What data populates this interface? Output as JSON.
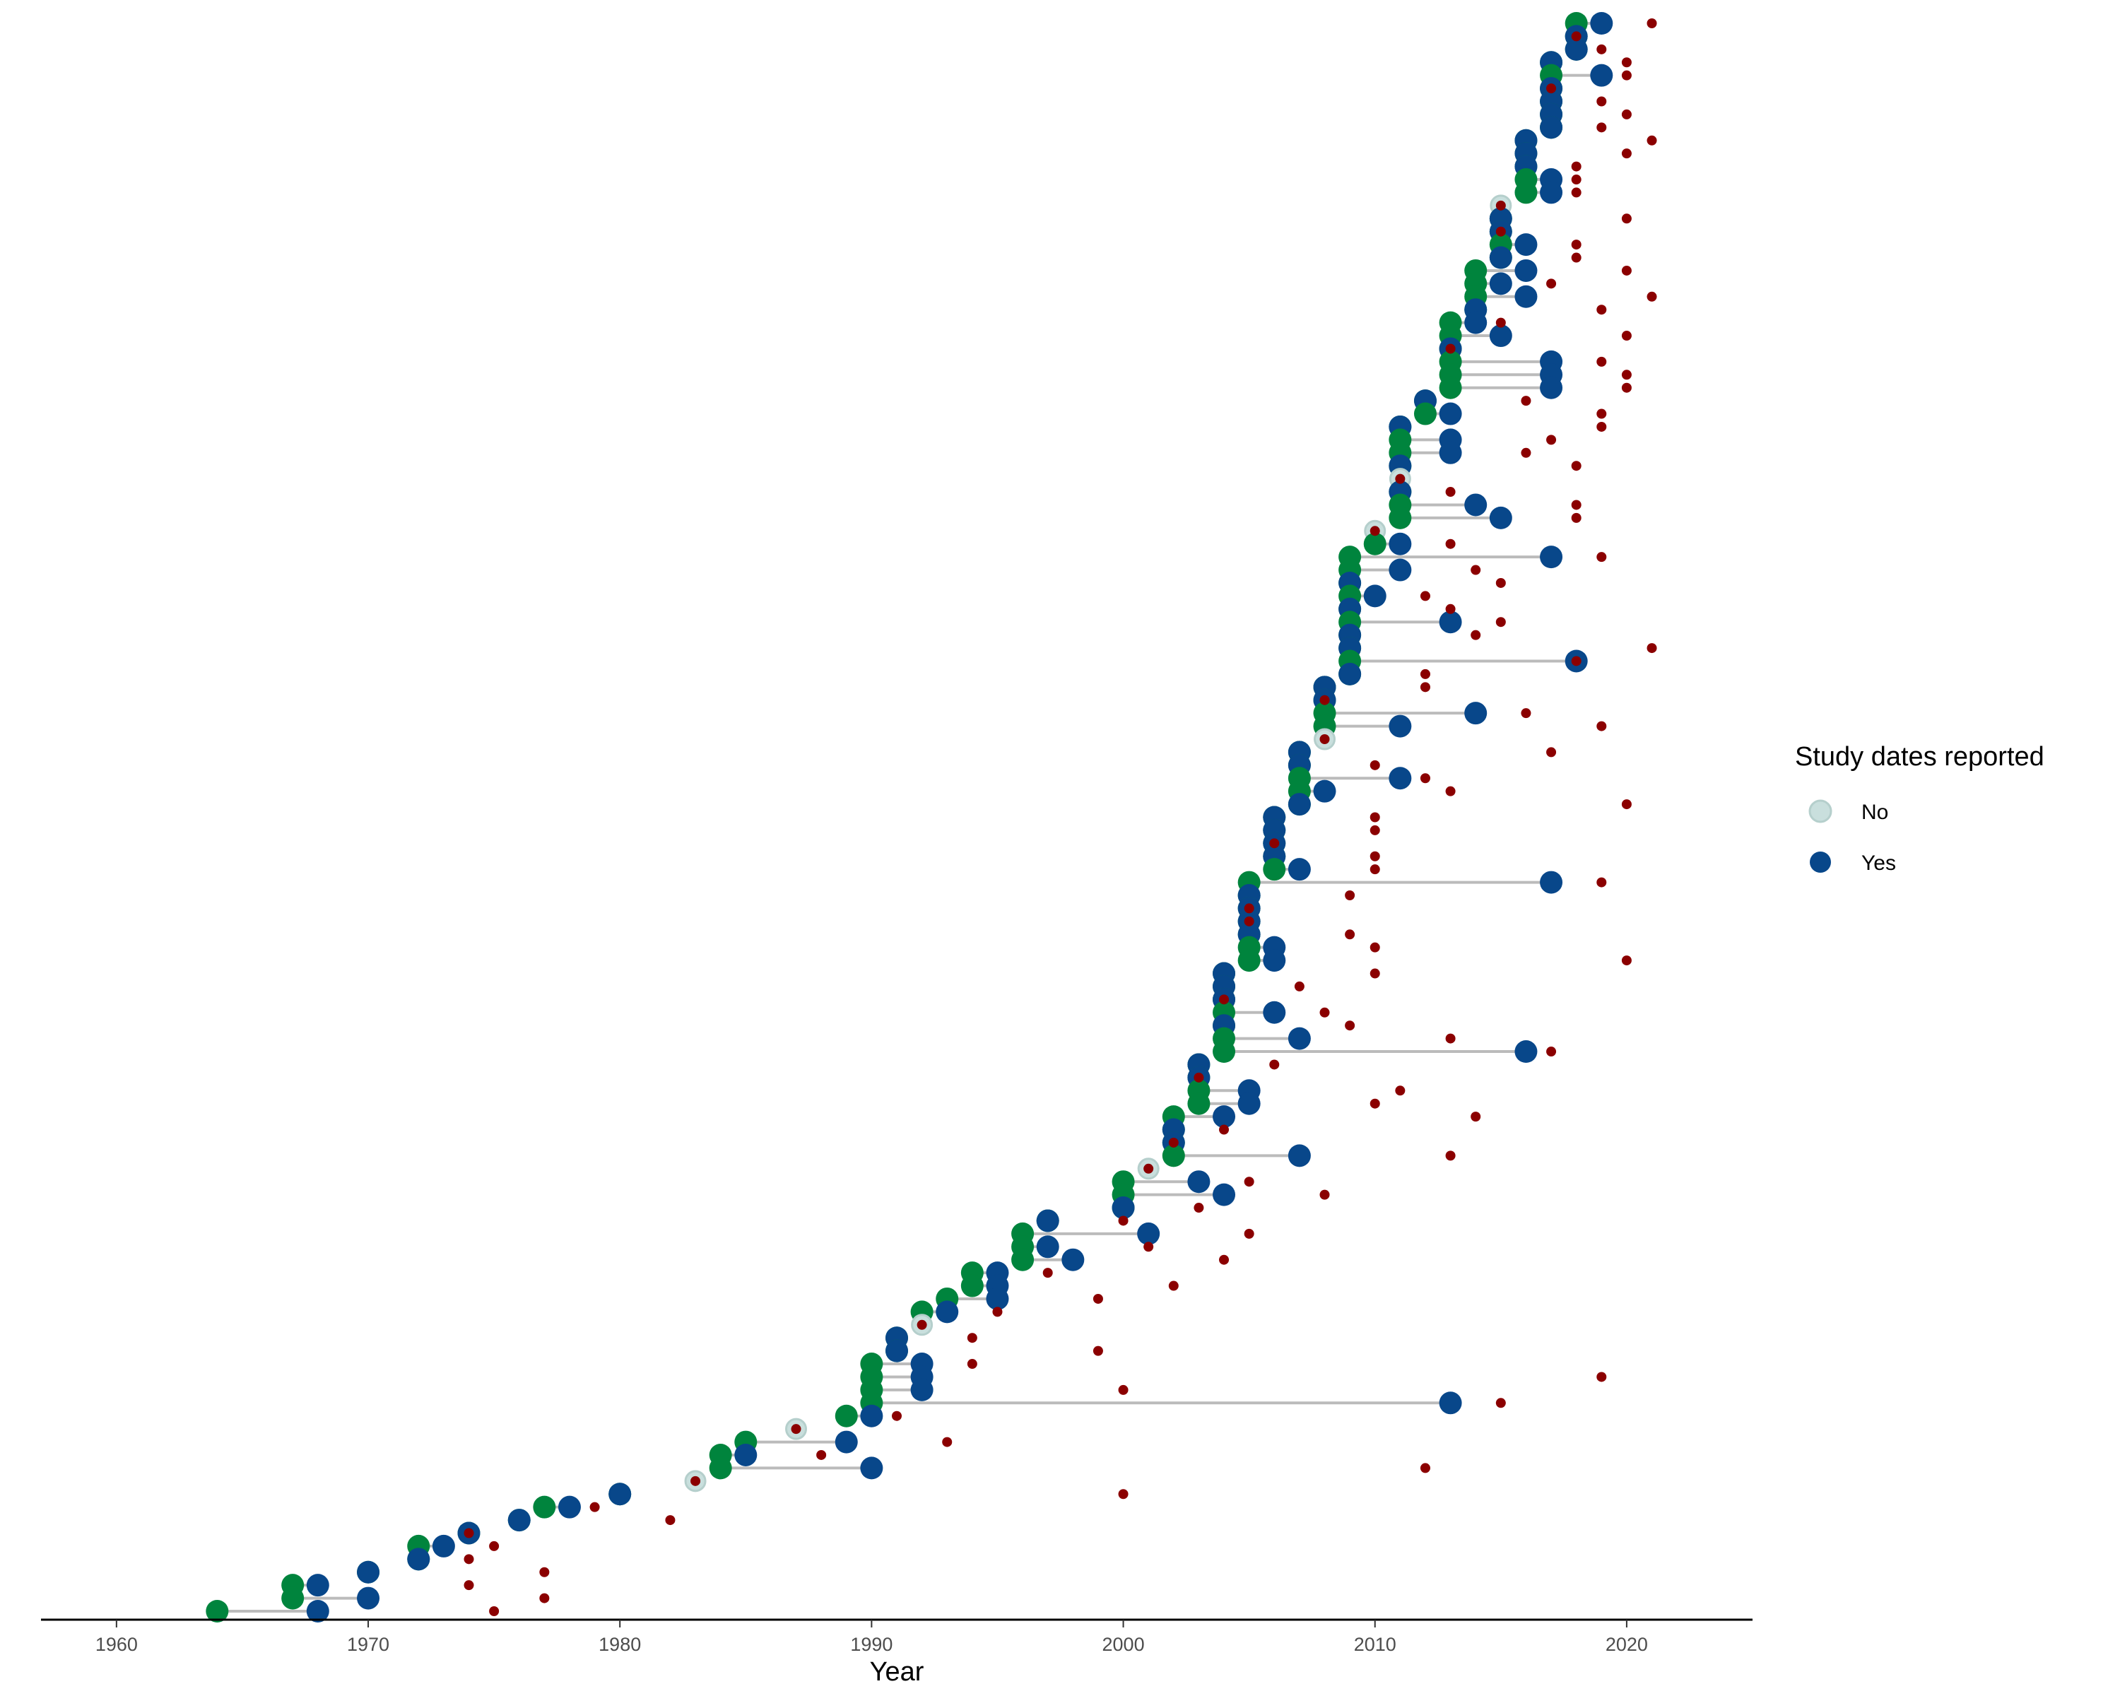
{
  "chart_data": {
    "type": "scatter",
    "title": "",
    "xlabel": "Year",
    "ylabel": "",
    "xlim": [
      1957,
      2025
    ],
    "xticks": [
      1960,
      1970,
      1980,
      1990,
      2000,
      2010,
      2020
    ],
    "grid": false,
    "legend": {
      "title": "Study dates reported",
      "position": "right",
      "entries": [
        {
          "label": "No",
          "color": "#c9dfdd"
        },
        {
          "label": "Yes",
          "color": "#08478a"
        }
      ]
    },
    "colors": {
      "study_start": "#00843d",
      "study_end_yes": "#08478a",
      "no_dates": "#c9dfdd",
      "publication": "#8b0000",
      "connector": "#bbbbbb"
    },
    "rows": [
      {
        "start": 2018,
        "end": 2019,
        "pub": 2021
      },
      {
        "start": 2018,
        "end": 2018,
        "pub": 2018
      },
      {
        "start": 2018,
        "end": 2018,
        "pub": 2019
      },
      {
        "start": 2017,
        "end": 2017,
        "pub": 2020
      },
      {
        "start": 2017,
        "end": 2019,
        "pub": 2020
      },
      {
        "start": 2017,
        "end": 2017,
        "pub": 2017
      },
      {
        "start": 2017,
        "end": 2017,
        "pub": 2019
      },
      {
        "start": 2017,
        "end": 2017,
        "pub": 2020
      },
      {
        "start": 2017,
        "end": 2017,
        "pub": 2019
      },
      {
        "start": 2016,
        "end": 2016,
        "pub": 2021
      },
      {
        "start": 2016,
        "end": 2016,
        "pub": 2020
      },
      {
        "start": 2016,
        "end": 2016,
        "pub": 2018
      },
      {
        "start": 2016,
        "end": 2017,
        "pub": 2018
      },
      {
        "start": 2016,
        "end": 2017,
        "pub": 2018
      },
      {
        "start": null,
        "end": null,
        "nodate": 2015,
        "pub": 2015
      },
      {
        "start": 2015,
        "end": 2015,
        "pub": 2020
      },
      {
        "start": 2015,
        "end": 2015,
        "pub": 2015
      },
      {
        "start": 2015,
        "end": 2016,
        "pub": 2018
      },
      {
        "start": 2015,
        "end": 2015,
        "pub": 2018
      },
      {
        "start": 2014,
        "end": 2016,
        "pub": 2020
      },
      {
        "start": 2014,
        "end": 2015,
        "pub": 2017
      },
      {
        "start": 2014,
        "end": 2016,
        "pub": 2021
      },
      {
        "start": 2014,
        "end": 2014,
        "pub": 2019
      },
      {
        "start": 2013,
        "end": 2014,
        "pub": 2015
      },
      {
        "start": 2013,
        "end": 2015,
        "pub": 2020
      },
      {
        "start": 2013,
        "end": 2013,
        "pub": 2013
      },
      {
        "start": 2013,
        "end": 2017,
        "pub": 2019
      },
      {
        "start": 2013,
        "end": 2017,
        "pub": 2020
      },
      {
        "start": 2013,
        "end": 2017,
        "pub": 2020
      },
      {
        "start": 2012,
        "end": 2012,
        "pub": 2016
      },
      {
        "start": 2012,
        "end": 2013,
        "pub": 2019
      },
      {
        "start": 2011,
        "end": 2011,
        "pub": 2019
      },
      {
        "start": 2011,
        "end": 2013,
        "pub": 2017
      },
      {
        "start": 2011,
        "end": 2013,
        "pub": 2016
      },
      {
        "start": 2011,
        "end": 2011,
        "pub": 2018
      },
      {
        "start": null,
        "end": null,
        "nodate": 2011,
        "pub": 2011
      },
      {
        "start": 2011,
        "end": 2011,
        "pub": 2013
      },
      {
        "start": 2011,
        "end": 2014,
        "pub": 2018
      },
      {
        "start": 2011,
        "end": 2015,
        "pub": 2018
      },
      {
        "start": null,
        "end": null,
        "nodate": 2010,
        "pub": 2010
      },
      {
        "start": 2010,
        "end": 2011,
        "pub": 2013
      },
      {
        "start": 2009,
        "end": 2017,
        "pub": 2019
      },
      {
        "start": 2009,
        "end": 2011,
        "pub": 2014
      },
      {
        "start": 2009,
        "end": 2009,
        "pub": 2015
      },
      {
        "start": 2009,
        "end": 2010,
        "pub": 2012
      },
      {
        "start": 2009,
        "end": 2009,
        "pub": 2013
      },
      {
        "start": 2009,
        "end": 2013,
        "pub": 2015
      },
      {
        "start": 2009,
        "end": 2009,
        "pub": 2014
      },
      {
        "start": 2009,
        "end": 2009,
        "pub": 2021
      },
      {
        "start": 2009,
        "end": 2018,
        "pub": 2018
      },
      {
        "start": 2009,
        "end": 2009,
        "pub": 2012
      },
      {
        "start": 2008,
        "end": 2008,
        "pub": 2012
      },
      {
        "start": 2008,
        "end": 2008,
        "pub": 2008
      },
      {
        "start": 2008,
        "end": 2014,
        "pub": 2016
      },
      {
        "start": 2008,
        "end": 2011,
        "pub": 2019
      },
      {
        "start": null,
        "end": null,
        "nodate": 2008,
        "pub": 2008
      },
      {
        "start": 2007,
        "end": 2007,
        "pub": 2017
      },
      {
        "start": 2007,
        "end": 2007,
        "pub": 2010
      },
      {
        "start": 2007,
        "end": 2011,
        "pub": 2012
      },
      {
        "start": 2007,
        "end": 2008,
        "pub": 2013
      },
      {
        "start": 2007,
        "end": 2007,
        "pub": 2020
      },
      {
        "start": 2006,
        "end": 2006,
        "pub": 2010
      },
      {
        "start": 2006,
        "end": 2006,
        "pub": 2010
      },
      {
        "start": 2006,
        "end": 2006,
        "pub": 2006
      },
      {
        "start": 2006,
        "end": 2006,
        "pub": 2010
      },
      {
        "start": 2006,
        "end": 2007,
        "pub": 2010
      },
      {
        "start": 2005,
        "end": 2017,
        "pub": 2019
      },
      {
        "start": 2005,
        "end": 2005,
        "pub": 2009
      },
      {
        "start": 2005,
        "end": 2005,
        "pub": 2005
      },
      {
        "start": 2005,
        "end": 2005,
        "pub": 2005
      },
      {
        "start": 2005,
        "end": 2005,
        "pub": 2009
      },
      {
        "start": 2005,
        "end": 2006,
        "pub": 2010
      },
      {
        "start": 2005,
        "end": 2006,
        "pub": 2020
      },
      {
        "start": 2004,
        "end": 2004,
        "pub": 2010
      },
      {
        "start": 2004,
        "end": 2004,
        "pub": 2007
      },
      {
        "start": 2004,
        "end": 2004,
        "pub": 2004
      },
      {
        "start": 2004,
        "end": 2006,
        "pub": 2008
      },
      {
        "start": 2004,
        "end": 2004,
        "pub": 2009
      },
      {
        "start": 2004,
        "end": 2007,
        "pub": 2013
      },
      {
        "start": 2004,
        "end": 2016,
        "pub": 2017
      },
      {
        "start": 2003,
        "end": 2003,
        "pub": 2006
      },
      {
        "start": 2003,
        "end": 2003,
        "pub": 2003
      },
      {
        "start": 2003,
        "end": 2005,
        "pub": 2011
      },
      {
        "start": 2003,
        "end": 2005,
        "pub": 2010
      },
      {
        "start": 2002,
        "end": 2004,
        "pub": 2014
      },
      {
        "start": 2002,
        "end": 2002,
        "pub": 2004
      },
      {
        "start": 2002,
        "end": 2002,
        "pub": 2002
      },
      {
        "start": 2002,
        "end": 2007,
        "pub": 2013
      },
      {
        "start": null,
        "end": null,
        "nodate": 2001,
        "pub": 2001
      },
      {
        "start": 2000,
        "end": 2003,
        "pub": 2005
      },
      {
        "start": 2000,
        "end": 2004,
        "pub": 2008
      },
      {
        "start": 2000,
        "end": 2000,
        "pub": 2003
      },
      {
        "start": 1997,
        "end": 1997,
        "pub": 2000
      },
      {
        "start": 1996,
        "end": 2001,
        "pub": 2005
      },
      {
        "start": 1996,
        "end": 1997,
        "pub": 2001
      },
      {
        "start": 1996,
        "end": 1998,
        "pub": 2004
      },
      {
        "start": 1994,
        "end": 1995,
        "pub": 1997
      },
      {
        "start": 1994,
        "end": 1995,
        "pub": 2002
      },
      {
        "start": 1993,
        "end": 1995,
        "pub": 1999
      },
      {
        "start": 1992,
        "end": 1993,
        "pub": 1995
      },
      {
        "start": null,
        "end": null,
        "nodate": 1992,
        "pub": 1992
      },
      {
        "start": 1991,
        "end": 1991,
        "pub": 1994
      },
      {
        "start": 1991,
        "end": 1991,
        "pub": 1999
      },
      {
        "start": 1990,
        "end": 1992,
        "pub": 1994
      },
      {
        "start": 1990,
        "end": 1992,
        "pub": 2019
      },
      {
        "start": 1990,
        "end": 1992,
        "pub": 2000
      },
      {
        "start": 1990,
        "end": 2013,
        "pub": 2015
      },
      {
        "start": 1989,
        "end": 1990,
        "pub": 1991
      },
      {
        "start": null,
        "end": null,
        "nodate": 1987,
        "pub": 1987
      },
      {
        "start": 1985,
        "end": 1989,
        "pub": 1993
      },
      {
        "start": 1984,
        "end": 1985,
        "pub": 1988
      },
      {
        "start": 1984,
        "end": 1990,
        "pub": 2012
      },
      {
        "start": null,
        "end": null,
        "nodate": 1983,
        "pub": 1983
      },
      {
        "start": 1980,
        "end": 1980,
        "pub": 2000
      },
      {
        "start": 1977,
        "end": 1978,
        "pub": 1979
      },
      {
        "start": 1976,
        "end": 1976,
        "pub": 1982
      },
      {
        "start": 1974,
        "end": 1974,
        "pub": 1974
      },
      {
        "start": 1972,
        "end": 1973,
        "pub": 1975
      },
      {
        "start": 1972,
        "end": 1972,
        "pub": 1974
      },
      {
        "start": 1970,
        "end": 1970,
        "pub": 1977
      },
      {
        "start": 1967,
        "end": 1968,
        "pub": 1974
      },
      {
        "start": 1967,
        "end": 1970,
        "pub": 1977
      },
      {
        "start": 1964,
        "end": 1968,
        "pub": 1975
      }
    ]
  }
}
